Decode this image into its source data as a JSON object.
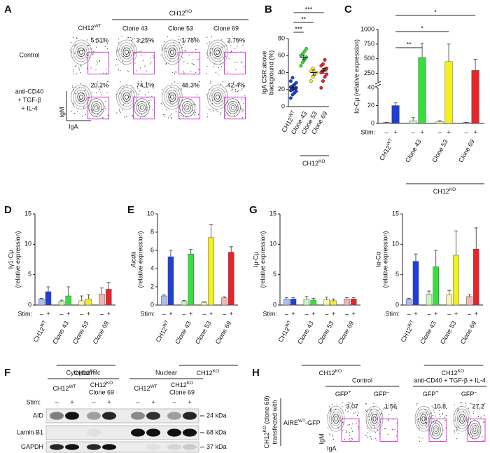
{
  "figure": {
    "A": {
      "label": "A",
      "ko_header": {
        "text": "CH12",
        "sup": "KO"
      },
      "columns": [
        {
          "text": "CH12",
          "sup": "WT"
        },
        "Clone 43",
        "Clone 53",
        "Clone 69"
      ],
      "rows": [
        {
          "label": [
            "Control"
          ],
          "percents": [
            "5.51%",
            "3.25%",
            "1.78%",
            "2.76%"
          ]
        },
        {
          "label": [
            "anti-CD40",
            "+ TGF-β",
            "+ IL-4"
          ],
          "percents": [
            "20.2%",
            "74.1%",
            "46.3%",
            "42.4%"
          ]
        }
      ],
      "y_axis": "IgM",
      "x_axis": "IgA"
    },
    "F": {
      "label": "F",
      "fractions": [
        "Cytoplasmic",
        "Nuclear"
      ],
      "lanes": [
        {
          "text": "CH12",
          "sup": "WT"
        },
        {
          "text": "CH12",
          "sup": "KO",
          "line2": "Clone 69"
        },
        {
          "text": "CH12",
          "sup": "WT"
        },
        {
          "text": "CH12",
          "sup": "KO",
          "line2": "Clone 69"
        }
      ],
      "stim_label": "Stim:",
      "stim_signs": [
        "–",
        "+"
      ],
      "blots": [
        {
          "name": "AID",
          "marker": "24 kDa"
        },
        {
          "name": "Lamin B1",
          "marker": "68 kDa"
        },
        {
          "name": "GAPDH",
          "marker": "37 kDa"
        }
      ]
    },
    "H": {
      "label": "H",
      "conditions": [
        "Control",
        "anti-CD40 + TGF-β + IL-4"
      ],
      "gates": [
        {
          "text": "GFP",
          "sup": "+"
        },
        {
          "text": "GFP",
          "sup": "–"
        },
        {
          "text": "GFP",
          "sup": "+"
        },
        {
          "text": "GFP",
          "sup": "–"
        }
      ],
      "percents": [
        "3.07",
        "1.56",
        "10.8",
        "27.2"
      ],
      "side_label": [
        {
          "text": "CH12",
          "sup": "KO",
          "rest": " (clone 69)"
        },
        "transfected with"
      ],
      "construct": {
        "text": "AIRE",
        "sup": "WT",
        "rest": "-GFP"
      },
      "y_axis": "IgM",
      "x_axis": "IgA"
    }
  },
  "chart_data": [
    {
      "type": "dot",
      "panel": "B",
      "ylabel": [
        "IgA CSR above",
        "background (%)"
      ],
      "categories": [
        {
          "text": "CH12",
          "sup": "WT"
        },
        "Clone 43",
        "Clone 53",
        "Clone 69"
      ],
      "values": [
        [
          10,
          14,
          16,
          18,
          19,
          20,
          21,
          22,
          23,
          24,
          26,
          28,
          30,
          34
        ],
        [
          48,
          52,
          55,
          58,
          60,
          62,
          65,
          68
        ],
        [
          30,
          35,
          38,
          40,
          42,
          45
        ],
        [
          22,
          30,
          35,
          38,
          40,
          42,
          44,
          45,
          48,
          50,
          55
        ]
      ],
      "means": [
        22,
        58,
        40,
        42
      ],
      "errors": [
        2,
        2.5,
        3,
        3
      ],
      "colors": [
        "#1e3fd8",
        "#35e03c",
        "#f4f01a",
        "#e8232a"
      ],
      "ylim": [
        0,
        80
      ],
      "yticks": [
        0,
        20,
        40,
        60,
        80
      ],
      "group_label": {
        "text": "CH12",
        "sup": "KO"
      },
      "significance": [
        {
          "from": 0,
          "to": 3,
          "label": "***"
        },
        {
          "from": 0,
          "to": 2,
          "label": "**"
        },
        {
          "from": 0,
          "to": 1,
          "label": "***"
        }
      ]
    },
    {
      "type": "bar",
      "panel": "C",
      "ylabel": [
        "Iα-Cμ (relative expression)"
      ],
      "categories": [
        {
          "text": "CH12",
          "sup": "WT"
        },
        "Clone 43",
        "Clone 53",
        "Clone 69"
      ],
      "series": [
        {
          "name": "–",
          "values": [
            1,
            3,
            2,
            1
          ],
          "errors": [
            0.3,
            3.5,
            1,
            0.3
          ],
          "colors": [
            "#a9bff0",
            "#c8f5c0",
            "#fbf5b0",
            "#f5b3b3"
          ]
        },
        {
          "name": "+",
          "values": [
            20,
            520,
            450,
            300
          ],
          "errors": [
            3,
            240,
            300,
            190
          ],
          "colors": [
            "#1e3fd8",
            "#35e03c",
            "#f4f01a",
            "#e8232a"
          ]
        }
      ],
      "ylim": [
        0,
        1000
      ],
      "axis_break": [
        40,
        100
      ],
      "yticks": [
        0,
        20,
        40,
        250,
        500,
        750,
        1000
      ],
      "stim_label": "Stim:",
      "group_label": {
        "text": "CH12",
        "sup": "KO"
      },
      "significance": [
        {
          "from": 0,
          "to": 3,
          "label": "*"
        },
        {
          "from": 0,
          "to": 2,
          "label": "*"
        },
        {
          "from": 0,
          "to": 1,
          "label": "**"
        }
      ]
    },
    {
      "type": "bar",
      "panel": "D",
      "ylabel": [
        "Iγ1-Cμ",
        "(relative expression)"
      ],
      "categories": [
        {
          "text": "CH12",
          "sup": "WT"
        },
        "Clone 43",
        "Clone 53",
        "Clone 69"
      ],
      "series": [
        {
          "name": "–",
          "values": [
            1,
            0.6,
            0.7,
            1.8
          ],
          "errors": [
            0.1,
            0.2,
            0.8,
            1
          ],
          "colors": [
            "#a9bff0",
            "#c8f5c0",
            "#fbf5b0",
            "#f5b3b3"
          ]
        },
        {
          "name": "+",
          "values": [
            2.2,
            1.5,
            1,
            2.6
          ],
          "errors": [
            0.8,
            1.5,
            0.7,
            1.1
          ],
          "colors": [
            "#1e3fd8",
            "#35e03c",
            "#f4f01a",
            "#e8232a"
          ]
        }
      ],
      "ylim": [
        0,
        15
      ],
      "yticks": [
        0,
        5,
        10,
        15
      ],
      "stim_label": "Stim:",
      "group_label": {
        "text": "CH12",
        "sup": "KO"
      }
    },
    {
      "type": "bar",
      "panel": "E",
      "ylabel": [
        "Aicda",
        "(relative expression)"
      ],
      "ylabel_italic": true,
      "categories": [
        {
          "text": "CH12",
          "sup": "WT"
        },
        "Clone 43",
        "Clone 53",
        "Clone 69"
      ],
      "series": [
        {
          "name": "–",
          "values": [
            1,
            0.4,
            0.3,
            0.8
          ],
          "errors": [
            0.1,
            0.1,
            0.05,
            0.1
          ],
          "colors": [
            "#a9bff0",
            "#c8f5c0",
            "#fbf5b0",
            "#f5b3b3"
          ]
        },
        {
          "name": "+",
          "values": [
            5.3,
            5.6,
            7.4,
            5.8
          ],
          "errors": [
            0.7,
            0.5,
            1.4,
            0.6
          ],
          "colors": [
            "#1e3fd8",
            "#35e03c",
            "#f4f01a",
            "#e8232a"
          ]
        }
      ],
      "ylim": [
        0,
        10
      ],
      "yticks": [
        0,
        2,
        4,
        6,
        8,
        10
      ],
      "stim_label": "Stim:",
      "group_label": {
        "text": "CH12",
        "sup": "KO"
      }
    },
    {
      "type": "bar",
      "panel": "G",
      "ylabel": [
        "Iμ-Cμ",
        "(relative expression)"
      ],
      "categories": [
        {
          "text": "CH12",
          "sup": "WT"
        },
        "Clone 43",
        "Clone 53",
        "Clone 69"
      ],
      "series": [
        {
          "name": "–",
          "values": [
            1,
            1,
            0.9,
            1
          ],
          "errors": [
            0.2,
            0.4,
            0.4,
            0.2
          ],
          "colors": [
            "#a9bff0",
            "#c8f5c0",
            "#fbf5b0",
            "#f5b3b3"
          ]
        },
        {
          "name": "+",
          "values": [
            1,
            0.8,
            0.7,
            1
          ],
          "errors": [
            0.2,
            0.3,
            0.3,
            0.2
          ],
          "colors": [
            "#1e3fd8",
            "#35e03c",
            "#f4f01a",
            "#e8232a"
          ]
        }
      ],
      "ylim": [
        0,
        15
      ],
      "yticks": [
        0,
        5,
        10,
        15
      ],
      "stim_label": "Stim:",
      "group_label": {
        "text": "CH12",
        "sup": "KO"
      }
    },
    {
      "type": "bar",
      "ylabel": [
        "Iα-Cα",
        "(relative expression)"
      ],
      "categories": [
        {
          "text": "CH12",
          "sup": "WT"
        },
        "Clone 43",
        "Clone 53",
        "Clone 69"
      ],
      "series": [
        {
          "name": "–",
          "values": [
            1,
            1.8,
            1.7,
            1.4
          ],
          "errors": [
            0.1,
            0.5,
            0.7,
            0.3
          ],
          "colors": [
            "#a9bff0",
            "#c8f5c0",
            "#fbf5b0",
            "#f5b3b3"
          ]
        },
        {
          "name": "+",
          "values": [
            7.2,
            6.3,
            8.2,
            9.2
          ],
          "errors": [
            1.2,
            2.7,
            4,
            3.5
          ],
          "colors": [
            "#1e3fd8",
            "#35e03c",
            "#f4f01a",
            "#e8232a"
          ]
        }
      ],
      "ylim": [
        0,
        15
      ],
      "yticks": [
        0,
        5,
        10,
        15
      ],
      "stim_label": "Stim:",
      "group_label": {
        "text": "CH12",
        "sup": "KO"
      }
    }
  ]
}
